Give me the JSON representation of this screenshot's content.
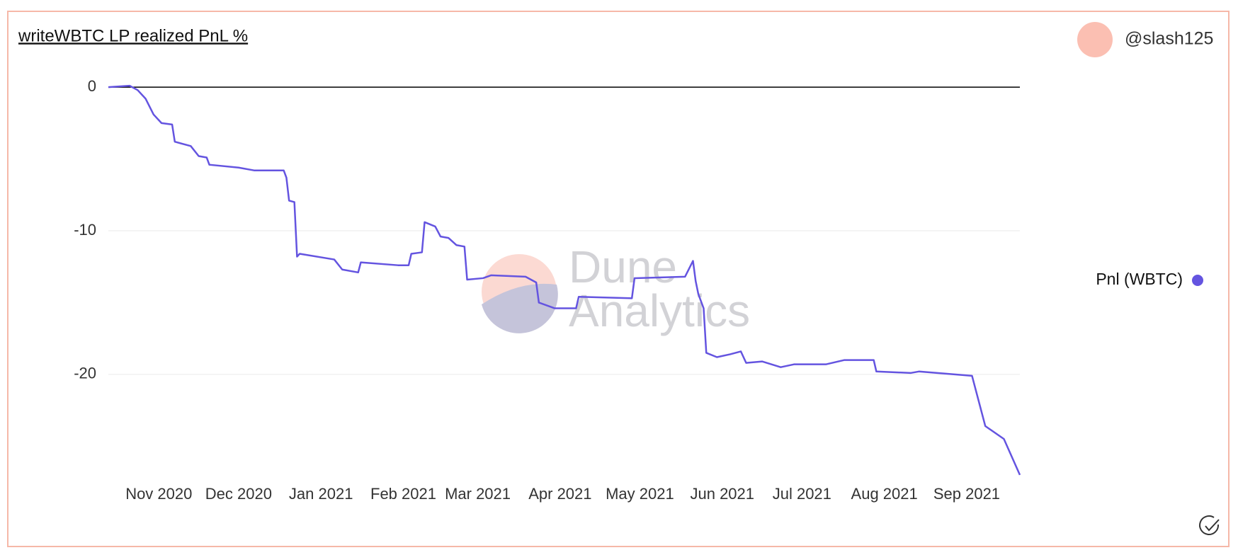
{
  "chart_data": {
    "type": "line",
    "title": "writeWBTC LP realized PnL %",
    "author": "@slash125",
    "watermark": [
      "Dune",
      "Analytics"
    ],
    "legend": "right",
    "grid": true,
    "xlim": [
      "2020-10-13",
      "2021-09-21"
    ],
    "xticks": [
      {
        "value": "2020-11-01",
        "label": "Nov 2020"
      },
      {
        "value": "2020-12-01",
        "label": "Dec 2020"
      },
      {
        "value": "2021-01-01",
        "label": "Jan 2021"
      },
      {
        "value": "2021-02-01",
        "label": "Feb 2021"
      },
      {
        "value": "2021-03-01",
        "label": "Mar 2021"
      },
      {
        "value": "2021-04-01",
        "label": "Apr 2021"
      },
      {
        "value": "2021-05-01",
        "label": "May 2021"
      },
      {
        "value": "2021-06-01",
        "label": "Jun 2021"
      },
      {
        "value": "2021-07-01",
        "label": "Jul 2021"
      },
      {
        "value": "2021-08-01",
        "label": "Aug 2021"
      },
      {
        "value": "2021-09-01",
        "label": "Sep 2021"
      }
    ],
    "ylim": [
      -27.5,
      0.5
    ],
    "yticks": [
      0,
      -10,
      -20
    ],
    "x": [
      "2020-10-13",
      "2020-10-21",
      "2020-10-24",
      "2020-10-27",
      "2020-10-30",
      "2020-11-02",
      "2020-11-06",
      "2020-11-07",
      "2020-11-13",
      "2020-11-16",
      "2020-11-19",
      "2020-11-20",
      "2020-12-01",
      "2020-12-07",
      "2020-12-18",
      "2020-12-19",
      "2020-12-20",
      "2020-12-22",
      "2020-12-23",
      "2020-12-24",
      "2021-01-06",
      "2021-01-09",
      "2021-01-15",
      "2021-01-16",
      "2021-01-30",
      "2021-02-03",
      "2021-02-04",
      "2021-02-08",
      "2021-02-09",
      "2021-02-13",
      "2021-02-15",
      "2021-02-18",
      "2021-02-21",
      "2021-02-24",
      "2021-02-25",
      "2021-03-03",
      "2021-03-06",
      "2021-03-19",
      "2021-03-23",
      "2021-03-24",
      "2021-03-30",
      "2021-04-07",
      "2021-04-08",
      "2021-04-28",
      "2021-04-29",
      "2021-05-18",
      "2021-05-21",
      "2021-05-22",
      "2021-05-23",
      "2021-05-25",
      "2021-05-26",
      "2021-05-30",
      "2021-06-04",
      "2021-06-08",
      "2021-06-10",
      "2021-06-16",
      "2021-06-23",
      "2021-06-28",
      "2021-07-10",
      "2021-07-17",
      "2021-07-28",
      "2021-07-29",
      "2021-08-11",
      "2021-08-14",
      "2021-09-03",
      "2021-09-08",
      "2021-09-15",
      "2021-09-21"
    ],
    "series": [
      {
        "name": "Pnl (WBTC)",
        "color": "#6454e0",
        "values": [
          0,
          0.1,
          -0.2,
          -0.8,
          -1.9,
          -2.5,
          -2.6,
          -3.8,
          -4.1,
          -4.8,
          -4.9,
          -5.4,
          -5.6,
          -5.8,
          -5.8,
          -6.3,
          -7.9,
          -8.0,
          -11.8,
          -11.6,
          -12.0,
          -12.7,
          -12.9,
          -12.2,
          -12.4,
          -12.4,
          -11.6,
          -11.5,
          -9.4,
          -9.7,
          -10.4,
          -10.5,
          -11.0,
          -11.1,
          -13.4,
          -13.3,
          -13.1,
          -13.2,
          -13.6,
          -15.0,
          -15.4,
          -15.4,
          -14.6,
          -14.7,
          -13.3,
          -13.2,
          -12.1,
          -13.5,
          -14.4,
          -15.4,
          -18.5,
          -18.8,
          -18.6,
          -18.4,
          -19.2,
          -19.1,
          -19.5,
          -19.3,
          -19.3,
          -19.0,
          -19.0,
          -19.8,
          -19.9,
          -19.8,
          -20.1,
          -23.6,
          -24.5,
          -27.0
        ]
      }
    ]
  }
}
